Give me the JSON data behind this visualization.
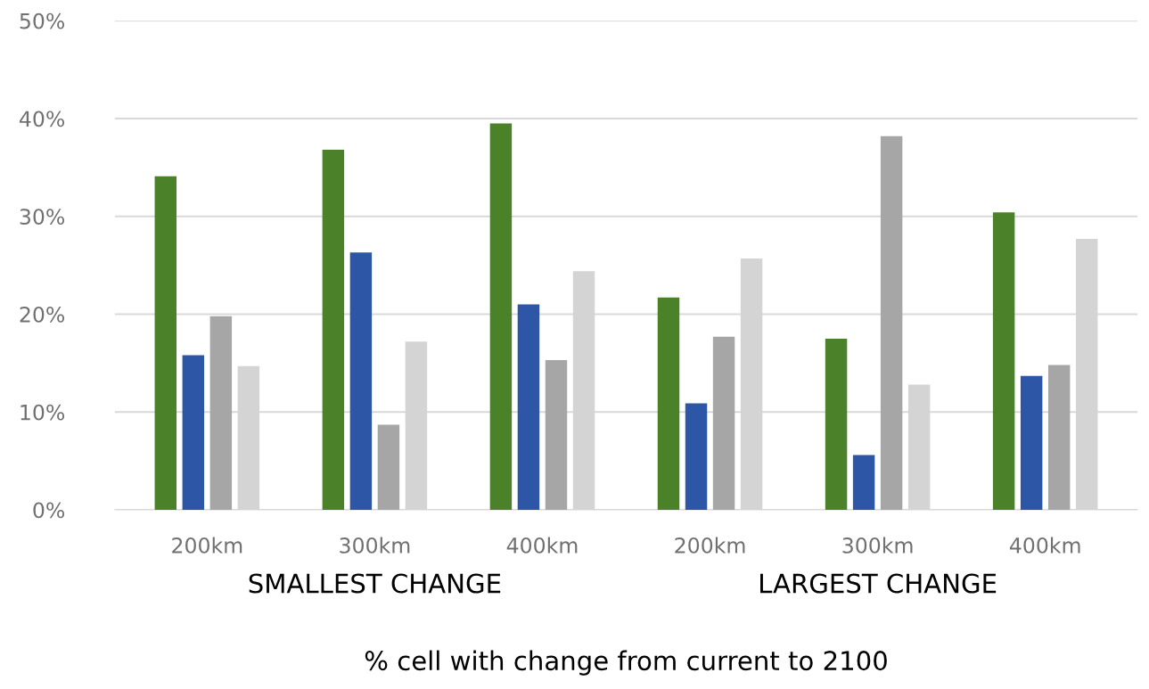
{
  "chart_data": {
    "type": "bar",
    "xlabel": "% cell with change from current to 2100",
    "categories": [
      "200km",
      "300km",
      "400km",
      "200km",
      "300km",
      "400km"
    ],
    "series": [
      {
        "color": "#4b8129",
        "values": [
          34.1,
          36.8,
          39.5,
          21.7,
          17.5,
          30.4
        ]
      },
      {
        "color": "#2e56a6",
        "values": [
          15.8,
          26.3,
          21.0,
          10.9,
          5.6,
          13.7
        ]
      },
      {
        "color": "#a6a6a6",
        "values": [
          19.8,
          8.7,
          15.3,
          17.7,
          38.2,
          14.8
        ]
      },
      {
        "color": "#d4d4d4",
        "values": [
          14.7,
          17.2,
          24.4,
          25.7,
          12.8,
          27.7
        ]
      }
    ],
    "ylim": [
      0,
      50
    ],
    "yticks": [
      {
        "value": 0,
        "label": "0%"
      },
      {
        "value": 10,
        "label": "10%"
      },
      {
        "value": 20,
        "label": "20%"
      },
      {
        "value": 30,
        "label": "30%"
      },
      {
        "value": 40,
        "label": "40%"
      },
      {
        "value": 50,
        "label": "50%"
      }
    ],
    "grid": "y",
    "annotations": [
      "SMALLEST CHANGE",
      "LARGEST CHANGE"
    ]
  }
}
